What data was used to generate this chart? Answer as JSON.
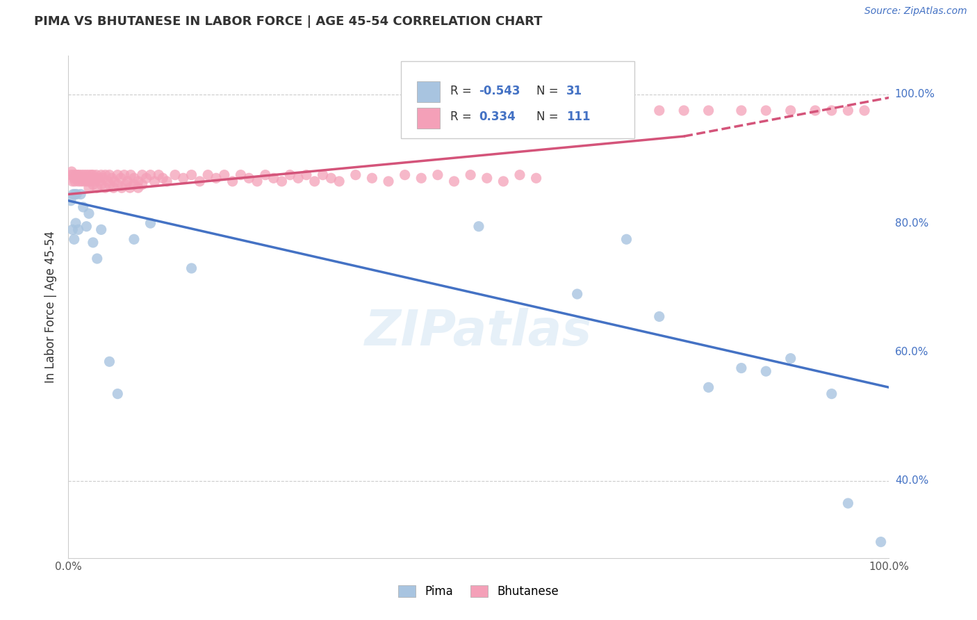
{
  "title": "PIMA VS BHUTANESE IN LABOR FORCE | AGE 45-54 CORRELATION CHART",
  "source_text": "Source: ZipAtlas.com",
  "ylabel": "In Labor Force | Age 45-54",
  "watermark": "ZIPatlas",
  "legend_pima_r": "-0.543",
  "legend_pima_n": "31",
  "legend_bhutanese_r": "0.334",
  "legend_bhutanese_n": "111",
  "pima_color": "#a8c4e0",
  "bhutanese_color": "#f4a0b8",
  "pima_line_color": "#4472c4",
  "bhutanese_line_color": "#d4547a",
  "background_color": "#ffffff",
  "grid_color": "#cccccc",
  "xlim": [
    0.0,
    1.0
  ],
  "ylim": [
    0.28,
    1.06
  ],
  "pima_x": [
    0.003,
    0.005,
    0.006,
    0.007,
    0.008,
    0.009,
    0.01,
    0.012,
    0.015,
    0.018,
    0.022,
    0.025,
    0.03,
    0.035,
    0.04,
    0.05,
    0.06,
    0.08,
    0.1,
    0.15,
    0.5,
    0.62,
    0.68,
    0.72,
    0.78,
    0.82,
    0.85,
    0.88,
    0.93,
    0.95,
    0.99
  ],
  "pima_y": [
    0.835,
    0.79,
    0.845,
    0.775,
    0.845,
    0.8,
    0.845,
    0.79,
    0.845,
    0.825,
    0.795,
    0.815,
    0.77,
    0.745,
    0.79,
    0.585,
    0.535,
    0.775,
    0.8,
    0.73,
    0.795,
    0.69,
    0.775,
    0.655,
    0.545,
    0.575,
    0.57,
    0.59,
    0.535,
    0.365,
    0.305
  ],
  "bhutanese_x": [
    0.003,
    0.004,
    0.005,
    0.006,
    0.007,
    0.008,
    0.009,
    0.01,
    0.011,
    0.012,
    0.013,
    0.014,
    0.015,
    0.016,
    0.017,
    0.018,
    0.019,
    0.02,
    0.021,
    0.022,
    0.023,
    0.024,
    0.025,
    0.026,
    0.027,
    0.028,
    0.029,
    0.03,
    0.032,
    0.034,
    0.036,
    0.038,
    0.04,
    0.042,
    0.045,
    0.048,
    0.05,
    0.053,
    0.056,
    0.06,
    0.064,
    0.068,
    0.072,
    0.076,
    0.08,
    0.085,
    0.09,
    0.095,
    0.1,
    0.105,
    0.11,
    0.115,
    0.12,
    0.13,
    0.14,
    0.15,
    0.16,
    0.17,
    0.18,
    0.19,
    0.2,
    0.21,
    0.22,
    0.23,
    0.24,
    0.25,
    0.26,
    0.27,
    0.28,
    0.29,
    0.3,
    0.31,
    0.32,
    0.33,
    0.35,
    0.37,
    0.39,
    0.41,
    0.43,
    0.45,
    0.47,
    0.49,
    0.51,
    0.53,
    0.55,
    0.57,
    0.025,
    0.03,
    0.035,
    0.04,
    0.045,
    0.05,
    0.055,
    0.06,
    0.065,
    0.07,
    0.075,
    0.08,
    0.085,
    0.09,
    0.68,
    0.72,
    0.75,
    0.78,
    0.82,
    0.85,
    0.88,
    0.91,
    0.93,
    0.95,
    0.97
  ],
  "bhutanese_y": [
    0.875,
    0.88,
    0.865,
    0.875,
    0.87,
    0.865,
    0.875,
    0.87,
    0.875,
    0.865,
    0.875,
    0.87,
    0.865,
    0.875,
    0.87,
    0.865,
    0.875,
    0.87,
    0.865,
    0.875,
    0.87,
    0.865,
    0.875,
    0.87,
    0.865,
    0.875,
    0.87,
    0.875,
    0.865,
    0.875,
    0.87,
    0.865,
    0.875,
    0.87,
    0.875,
    0.865,
    0.875,
    0.87,
    0.865,
    0.875,
    0.87,
    0.875,
    0.865,
    0.875,
    0.87,
    0.865,
    0.875,
    0.87,
    0.875,
    0.865,
    0.875,
    0.87,
    0.865,
    0.875,
    0.87,
    0.875,
    0.865,
    0.875,
    0.87,
    0.875,
    0.865,
    0.875,
    0.87,
    0.865,
    0.875,
    0.87,
    0.865,
    0.875,
    0.87,
    0.875,
    0.865,
    0.875,
    0.87,
    0.865,
    0.875,
    0.87,
    0.865,
    0.875,
    0.87,
    0.875,
    0.865,
    0.875,
    0.87,
    0.865,
    0.875,
    0.87,
    0.855,
    0.86,
    0.855,
    0.86,
    0.855,
    0.86,
    0.855,
    0.86,
    0.855,
    0.86,
    0.855,
    0.86,
    0.855,
    0.86,
    0.975,
    0.975,
    0.975,
    0.975,
    0.975,
    0.975,
    0.975,
    0.975,
    0.975,
    0.975,
    0.975
  ],
  "pima_line_x0": 0.0,
  "pima_line_x1": 1.0,
  "pima_line_y0": 0.835,
  "pima_line_y1": 0.545,
  "bhu_line_x0": 0.0,
  "bhu_line_x1": 0.75,
  "bhu_line_x_dash1": 0.75,
  "bhu_line_x_dash2": 1.0,
  "bhu_line_y0": 0.845,
  "bhu_line_y1": 0.935,
  "bhu_line_ydash1": 0.935,
  "bhu_line_ydash2": 0.995
}
